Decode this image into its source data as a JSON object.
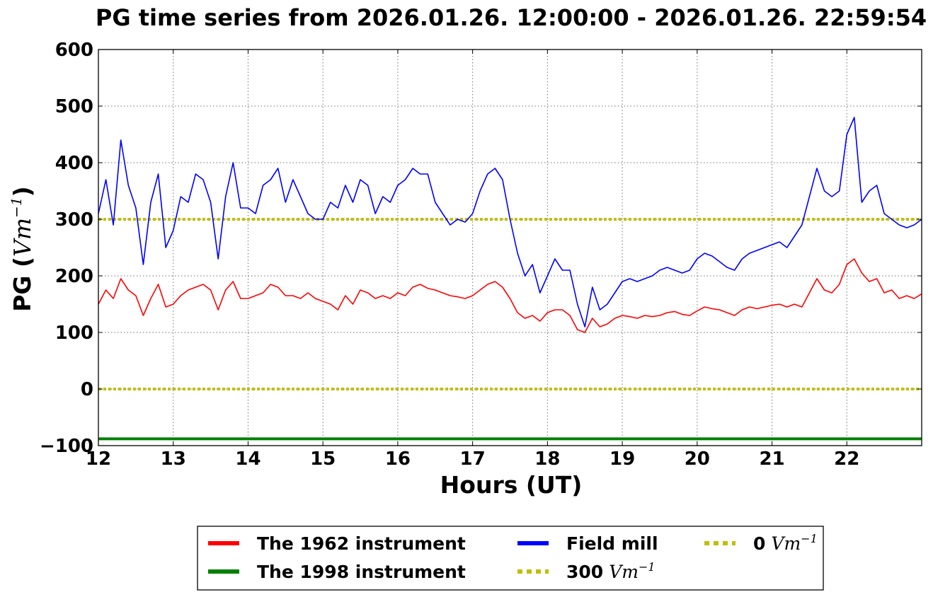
{
  "chart_data": {
    "type": "line",
    "title": "PG time series from 2026.01.26. 12:00:00 - 2026.01.26. 22:59:54",
    "xlabel": "Hours (UT)",
    "ylabel_prefix": "PG (",
    "ylabel_unit": "Vm",
    "ylabel_exp": "−1",
    "ylabel_suffix": ")",
    "xlim": [
      12,
      23
    ],
    "ylim": [
      -100,
      600
    ],
    "xticks": [
      12,
      13,
      14,
      15,
      16,
      17,
      18,
      19,
      20,
      21,
      22
    ],
    "yticks": [
      -100,
      0,
      100,
      200,
      300,
      400,
      500,
      600
    ],
    "ytick_labels": [
      "−100",
      "0",
      "100",
      "200",
      "300",
      "400",
      "500",
      "600"
    ],
    "grid": true,
    "legend_position": "bottom-center",
    "series": [
      {
        "name": "The 1962 instrument",
        "color": "#ff0000",
        "x": [
          12.0,
          12.1,
          12.2,
          12.3,
          12.4,
          12.5,
          12.6,
          12.7,
          12.8,
          12.9,
          13.0,
          13.1,
          13.2,
          13.3,
          13.4,
          13.5,
          13.6,
          13.7,
          13.8,
          13.9,
          14.0,
          14.1,
          14.2,
          14.3,
          14.4,
          14.5,
          14.6,
          14.7,
          14.8,
          14.9,
          15.0,
          15.1,
          15.2,
          15.3,
          15.4,
          15.5,
          15.6,
          15.7,
          15.8,
          15.9,
          16.0,
          16.1,
          16.2,
          16.3,
          16.4,
          16.5,
          16.6,
          16.7,
          16.8,
          16.9,
          17.0,
          17.1,
          17.2,
          17.3,
          17.4,
          17.5,
          17.6,
          17.7,
          17.8,
          17.9,
          18.0,
          18.1,
          18.2,
          18.3,
          18.4,
          18.5,
          18.6,
          18.7,
          18.8,
          18.9,
          19.0,
          19.1,
          19.2,
          19.3,
          19.4,
          19.5,
          19.6,
          19.7,
          19.8,
          19.9,
          20.0,
          20.1,
          20.2,
          20.3,
          20.4,
          20.5,
          20.6,
          20.7,
          20.8,
          20.9,
          21.0,
          21.1,
          21.2,
          21.3,
          21.4,
          21.5,
          21.6,
          21.7,
          21.8,
          21.9,
          22.0,
          22.1,
          22.2,
          22.3,
          22.4,
          22.5,
          22.6,
          22.7,
          22.8,
          22.9,
          23.0
        ],
        "values": [
          150,
          175,
          160,
          195,
          175,
          165,
          130,
          160,
          185,
          145,
          150,
          165,
          175,
          180,
          185,
          175,
          140,
          175,
          190,
          160,
          160,
          165,
          170,
          185,
          180,
          165,
          165,
          160,
          170,
          160,
          155,
          150,
          140,
          165,
          150,
          175,
          170,
          160,
          165,
          160,
          170,
          165,
          180,
          185,
          178,
          175,
          170,
          165,
          163,
          160,
          165,
          175,
          185,
          190,
          180,
          160,
          135,
          125,
          130,
          120,
          135,
          140,
          140,
          130,
          105,
          100,
          125,
          110,
          115,
          125,
          130,
          128,
          125,
          130,
          128,
          130,
          135,
          137,
          132,
          130,
          138,
          145,
          142,
          140,
          135,
          130,
          140,
          145,
          142,
          145,
          148,
          150,
          145,
          150,
          145,
          170,
          195,
          175,
          170,
          185,
          220,
          230,
          205,
          190,
          195,
          170,
          175,
          160,
          165,
          160,
          168
        ]
      },
      {
        "name": "The 1998 instrument",
        "color": "#008000",
        "x": [
          12,
          23
        ],
        "values": [
          -88,
          -88
        ]
      },
      {
        "name": "Field mill",
        "color": "#0000ff",
        "x": [
          12.0,
          12.1,
          12.2,
          12.3,
          12.4,
          12.5,
          12.6,
          12.7,
          12.8,
          12.9,
          13.0,
          13.1,
          13.2,
          13.3,
          13.4,
          13.5,
          13.6,
          13.7,
          13.8,
          13.9,
          14.0,
          14.1,
          14.2,
          14.3,
          14.4,
          14.5,
          14.6,
          14.7,
          14.8,
          14.9,
          15.0,
          15.1,
          15.2,
          15.3,
          15.4,
          15.5,
          15.6,
          15.7,
          15.8,
          15.9,
          16.0,
          16.1,
          16.2,
          16.3,
          16.4,
          16.5,
          16.6,
          16.7,
          16.8,
          16.9,
          17.0,
          17.1,
          17.2,
          17.3,
          17.4,
          17.5,
          17.6,
          17.7,
          17.8,
          17.9,
          18.0,
          18.1,
          18.2,
          18.3,
          18.4,
          18.5,
          18.6,
          18.7,
          18.8,
          18.9,
          19.0,
          19.1,
          19.2,
          19.3,
          19.4,
          19.5,
          19.6,
          19.7,
          19.8,
          19.9,
          20.0,
          20.1,
          20.2,
          20.3,
          20.4,
          20.5,
          20.6,
          20.7,
          20.8,
          20.9,
          21.0,
          21.1,
          21.2,
          21.3,
          21.4,
          21.5,
          21.6,
          21.7,
          21.8,
          21.9,
          22.0,
          22.1,
          22.2,
          22.3,
          22.4,
          22.5,
          22.6,
          22.7,
          22.8,
          22.9,
          23.0
        ],
        "values": [
          310,
          370,
          290,
          440,
          360,
          320,
          220,
          330,
          380,
          250,
          280,
          340,
          330,
          380,
          370,
          330,
          230,
          340,
          400,
          320,
          320,
          310,
          360,
          370,
          390,
          330,
          370,
          340,
          310,
          300,
          300,
          330,
          320,
          360,
          330,
          370,
          360,
          310,
          340,
          330,
          360,
          370,
          390,
          380,
          380,
          330,
          310,
          290,
          300,
          295,
          310,
          350,
          380,
          390,
          370,
          300,
          240,
          200,
          220,
          170,
          200,
          230,
          210,
          210,
          150,
          110,
          180,
          140,
          150,
          170,
          190,
          195,
          190,
          195,
          200,
          210,
          215,
          210,
          205,
          210,
          230,
          240,
          235,
          225,
          215,
          210,
          230,
          240,
          245,
          250,
          255,
          260,
          250,
          270,
          290,
          340,
          390,
          350,
          340,
          350,
          450,
          480,
          330,
          350,
          360,
          310,
          300,
          290,
          285,
          290,
          300
        ]
      }
    ],
    "reference_lines": [
      {
        "name": "300 Vm⁻¹",
        "label_number": "300",
        "value": 300,
        "color": "#bfbf00"
      },
      {
        "name": "0 Vm⁻¹",
        "label_number": "0",
        "value": 0,
        "color": "#bfbf00"
      }
    ],
    "legend": [
      {
        "label": "The 1962 instrument",
        "color": "#ff0000",
        "style": "solid",
        "col": 0,
        "row": 0
      },
      {
        "label": "The 1998 instrument",
        "color": "#008000",
        "style": "solid",
        "col": 0,
        "row": 1
      },
      {
        "label": "Field mill",
        "color": "#0000ff",
        "style": "solid",
        "col": 1,
        "row": 0
      },
      {
        "label": "300",
        "unit": "Vm",
        "exp": "−1",
        "color": "#bfbf00",
        "style": "dotted",
        "col": 1,
        "row": 1
      },
      {
        "label": "0",
        "unit": "Vm",
        "exp": "−1",
        "color": "#bfbf00",
        "style": "dotted",
        "col": 2,
        "row": 0
      }
    ]
  }
}
